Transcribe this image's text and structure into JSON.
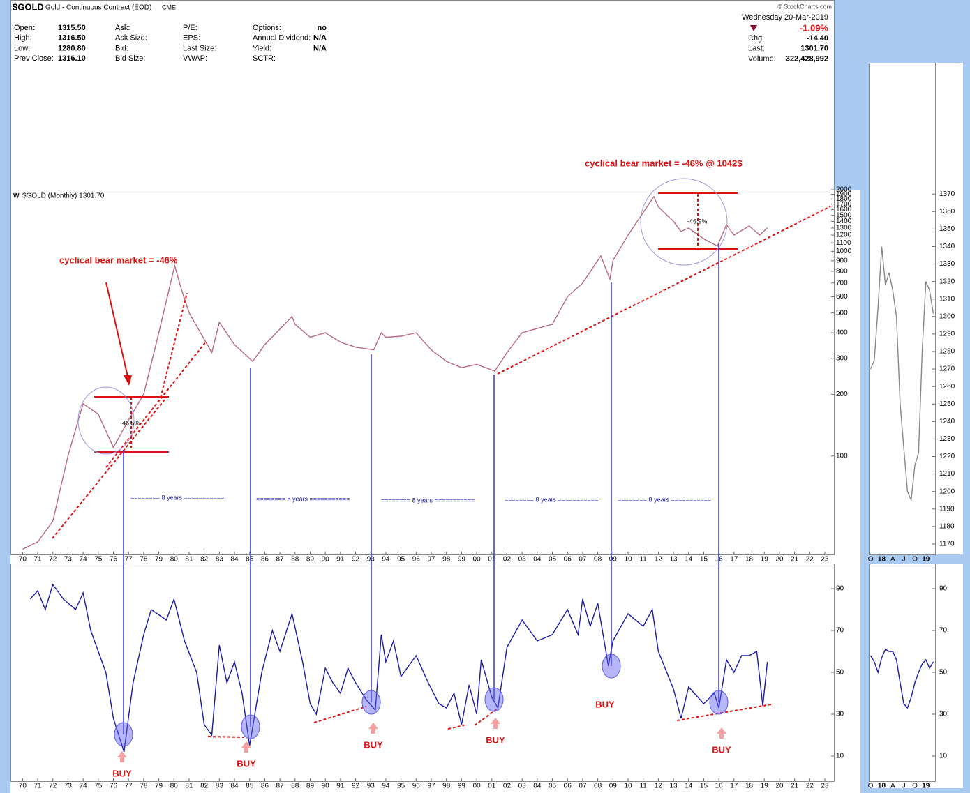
{
  "header": {
    "symbol": "$GOLD",
    "name": "Gold - Continuous Contract (EOD)",
    "exchange": "CME",
    "date": "Wednesday  20-Mar-2019",
    "change_pct": "-1.09%",
    "watermark": "© StockCharts.com",
    "columns": [
      {
        "labels": [
          "Open:",
          "High:",
          "Low:",
          "Prev Close:"
        ],
        "values": [
          "1315.50",
          "1316.50",
          "1280.80",
          "1316.10"
        ]
      },
      {
        "labels": [
          "Ask:",
          "Ask Size:",
          "Bid:",
          "Bid Size:"
        ]
      },
      {
        "labels": [
          "P/E:",
          "EPS:",
          "Last Size:",
          "VWAP:"
        ]
      },
      {
        "labels": [
          "Options:",
          "Annual Dividend:",
          "Yield:",
          "SCTR:"
        ],
        "values": [
          "no",
          "N/A",
          "N/A"
        ]
      },
      {
        "labels": [
          "Chg:",
          "Last:",
          "Volume:"
        ],
        "values": [
          "-14.40",
          "1301.70",
          "322,428,992"
        ]
      }
    ]
  },
  "chart_data": [
    {
      "type": "line",
      "log_scale": true,
      "x": [
        1970,
        1971,
        1972,
        1973,
        1974,
        1975,
        1976,
        1977,
        1978,
        1979,
        1980.05,
        1980.5,
        1981,
        1982.5,
        1983,
        1984,
        1985.2,
        1986,
        1987.8,
        1988,
        1989,
        1990,
        1991,
        1992,
        1993.2,
        1993.7,
        1994,
        1995,
        1996,
        1997,
        1998,
        1999,
        2000,
        2001.2,
        2002,
        2003,
        2004,
        2005,
        2006,
        2007,
        2008.2,
        2008.8,
        2009,
        2010,
        2011.7,
        2012,
        2013,
        2013.5,
        2014,
        2015,
        2015.9,
        2016.5,
        2017,
        2018,
        2018.7,
        2019.2
      ],
      "series": [
        {
          "name": "$GOLD (Monthly) 1301.70",
          "color": "#b76a7c",
          "values": [
            35,
            38,
            48,
            100,
            180,
            160,
            110,
            150,
            200,
            400,
            850,
            650,
            500,
            320,
            450,
            350,
            290,
            350,
            480,
            440,
            380,
            400,
            360,
            340,
            330,
            400,
            380,
            385,
            400,
            330,
            290,
            270,
            280,
            260,
            320,
            400,
            420,
            440,
            600,
            700,
            950,
            730,
            900,
            1200,
            1850,
            1650,
            1400,
            1250,
            1300,
            1150,
            1060,
            1350,
            1200,
            1330,
            1200,
            1301.7
          ]
        }
      ],
      "xlim": [
        1969.2,
        2023.6
      ],
      "ylim": [
        33,
        2000
      ],
      "yticks": [
        100,
        200,
        300,
        400,
        500,
        600,
        700,
        800,
        900,
        1000,
        1100,
        1200,
        1300,
        1400,
        1500,
        1600,
        1700,
        1800,
        1900,
        2000
      ],
      "xticks": [
        {
          "value": 1970,
          "label": "70"
        },
        {
          "value": 1971,
          "label": "71"
        },
        {
          "value": 1972,
          "label": "72"
        },
        {
          "value": 1973,
          "label": "73"
        },
        {
          "value": 1974,
          "label": "74"
        },
        {
          "value": 1975,
          "label": "75"
        },
        {
          "value": 1976,
          "label": "76"
        },
        {
          "value": 1977,
          "label": "77"
        },
        {
          "value": 1978,
          "label": "78"
        },
        {
          "value": 1979,
          "label": "79"
        },
        {
          "value": 1980,
          "label": "80"
        },
        {
          "value": 1981,
          "label": "81"
        },
        {
          "value": 1982,
          "label": "82"
        },
        {
          "value": 1983,
          "label": "83"
        },
        {
          "value": 1984,
          "label": "84"
        },
        {
          "value": 1985,
          "label": "85"
        },
        {
          "value": 1986,
          "label": "86"
        },
        {
          "value": 1987,
          "label": "87"
        },
        {
          "value": 1988,
          "label": "88"
        },
        {
          "value": 1989,
          "label": "89"
        },
        {
          "value": 1990,
          "label": "90"
        },
        {
          "value": 1991,
          "label": "91"
        },
        {
          "value": 1992,
          "label": "92"
        },
        {
          "value": 1993,
          "label": "93"
        },
        {
          "value": 1994,
          "label": "94"
        },
        {
          "value": 1995,
          "label": "95"
        },
        {
          "value": 1996,
          "label": "96"
        },
        {
          "value": 1997,
          "label": "97"
        },
        {
          "value": 1998,
          "label": "98"
        },
        {
          "value": 1999,
          "label": "99"
        },
        {
          "value": 2000,
          "label": "00"
        },
        {
          "value": 2001,
          "label": "01"
        },
        {
          "value": 2002,
          "label": "02"
        },
        {
          "value": 2003,
          "label": "03"
        },
        {
          "value": 2004,
          "label": "04"
        },
        {
          "value": 2005,
          "label": "05"
        },
        {
          "value": 2006,
          "label": "06"
        },
        {
          "value": 2007,
          "label": "07"
        },
        {
          "value": 2008,
          "label": "08"
        },
        {
          "value": 2009,
          "label": "09"
        },
        {
          "value": 2010,
          "label": "10"
        },
        {
          "value": 2011,
          "label": "11"
        },
        {
          "value": 2012,
          "label": "12"
        },
        {
          "value": 2013,
          "label": "13"
        },
        {
          "value": 2014,
          "label": "14"
        },
        {
          "value": 2015,
          "label": "15"
        },
        {
          "value": 2016,
          "label": "16"
        },
        {
          "value": 2017,
          "label": "17"
        },
        {
          "value": 2018,
          "label": "18"
        },
        {
          "value": 2019,
          "label": "19"
        },
        {
          "value": 2020,
          "label": "20"
        },
        {
          "value": 2021,
          "label": "21"
        },
        {
          "value": 2022,
          "label": "22"
        },
        {
          "value": 2023,
          "label": "23"
        }
      ],
      "annotations": [
        "cyclical bear market = -46%",
        "cyclical bear market = -46% @ 1042$",
        "-46.5%",
        "-46.9%",
        "======== 8 years ===========",
        "======== 8 years ===========",
        "======== 8 years ===========",
        "======== 8 years ===========",
        "======== 8 years ==========="
      ]
    },
    {
      "type": "line",
      "color": "#1a1aa6",
      "x": [
        1970.5,
        1971,
        1971.5,
        1972,
        1972.7,
        1973.5,
        1974,
        1974.5,
        1975.5,
        1976,
        1976.7,
        1977.3,
        1978,
        1978.5,
        1979.5,
        1980,
        1980.7,
        1981.5,
        1982,
        1982.5,
        1983,
        1983.5,
        1984,
        1984.5,
        1985,
        1985.8,
        1986.5,
        1987,
        1987.8,
        1988.5,
        1989,
        1989.4,
        1990,
        1990.5,
        1991,
        1991.5,
        1992,
        1992.7,
        1993.3,
        1993.7,
        1994,
        1994.5,
        1995,
        1996,
        1996.8,
        1997.5,
        1998,
        1998.5,
        1999,
        1999.5,
        2000,
        2000.3,
        2001,
        2001.4,
        2002,
        2003,
        2004,
        2005,
        2006,
        2006.7,
        2007,
        2007.5,
        2008,
        2008.7,
        2009,
        2010,
        2011,
        2011.6,
        2012,
        2013,
        2013.5,
        2014,
        2015,
        2015.7,
        2016,
        2016.5,
        2017,
        2017.5,
        2018,
        2018.5,
        2018.9,
        2019.2
      ],
      "values": [
        85,
        89,
        80,
        92,
        85,
        80,
        88,
        70,
        50,
        28,
        12,
        45,
        68,
        80,
        75,
        85,
        65,
        50,
        25,
        20,
        63,
        45,
        55,
        40,
        15,
        50,
        70,
        60,
        78,
        55,
        35,
        30,
        52,
        45,
        40,
        52,
        45,
        37,
        32,
        68,
        55,
        65,
        48,
        58,
        45,
        35,
        33,
        40,
        25,
        44,
        30,
        56,
        38,
        33,
        62,
        75,
        65,
        68,
        80,
        68,
        85,
        72,
        83,
        53,
        65,
        78,
        72,
        80,
        60,
        42,
        28,
        43,
        35,
        40,
        33,
        56,
        50,
        58,
        58,
        60,
        34,
        55
      ],
      "xlim": [
        1969.2,
        2023.6
      ],
      "ylim": [
        -2,
        102
      ],
      "yticks": [
        10,
        30,
        50,
        70,
        90
      ],
      "xticks": [
        {
          "value": 1970,
          "label": "70"
        },
        {
          "value": 1971,
          "label": "71"
        },
        {
          "value": 1972,
          "label": "72"
        },
        {
          "value": 1973,
          "label": "73"
        },
        {
          "value": 1974,
          "label": "74"
        },
        {
          "value": 1975,
          "label": "75"
        },
        {
          "value": 1976,
          "label": "76"
        },
        {
          "value": 1977,
          "label": "77"
        },
        {
          "value": 1978,
          "label": "78"
        },
        {
          "value": 1979,
          "label": "79"
        },
        {
          "value": 1980,
          "label": "80"
        },
        {
          "value": 1981,
          "label": "81"
        },
        {
          "value": 1982,
          "label": "82"
        },
        {
          "value": 1983,
          "label": "83"
        },
        {
          "value": 1984,
          "label": "84"
        },
        {
          "value": 1985,
          "label": "85"
        },
        {
          "value": 1986,
          "label": "86"
        },
        {
          "value": 1987,
          "label": "87"
        },
        {
          "value": 1988,
          "label": "88"
        },
        {
          "value": 1989,
          "label": "89"
        },
        {
          "value": 1990,
          "label": "90"
        },
        {
          "value": 1991,
          "label": "91"
        },
        {
          "value": 1992,
          "label": "92"
        },
        {
          "value": 1993,
          "label": "93"
        },
        {
          "value": 1994,
          "label": "94"
        },
        {
          "value": 1995,
          "label": "95"
        },
        {
          "value": 1996,
          "label": "96"
        },
        {
          "value": 1997,
          "label": "97"
        },
        {
          "value": 1998,
          "label": "98"
        },
        {
          "value": 1999,
          "label": "99"
        },
        {
          "value": 2000,
          "label": "00"
        },
        {
          "value": 2001,
          "label": "01"
        },
        {
          "value": 2002,
          "label": "02"
        },
        {
          "value": 2003,
          "label": "03"
        },
        {
          "value": 2004,
          "label": "04"
        },
        {
          "value": 2005,
          "label": "05"
        },
        {
          "value": 2006,
          "label": "06"
        },
        {
          "value": 2007,
          "label": "07"
        },
        {
          "value": 2008,
          "label": "08"
        },
        {
          "value": 2009,
          "label": "09"
        },
        {
          "value": 2010,
          "label": "10"
        },
        {
          "value": 2011,
          "label": "11"
        },
        {
          "value": 2012,
          "label": "12"
        },
        {
          "value": 2013,
          "label": "13"
        },
        {
          "value": 2014,
          "label": "14"
        },
        {
          "value": 2015,
          "label": "15"
        },
        {
          "value": 2016,
          "label": "16"
        },
        {
          "value": 2017,
          "label": "17"
        },
        {
          "value": 2018,
          "label": "18"
        },
        {
          "value": 2019,
          "label": "19"
        },
        {
          "value": 2020,
          "label": "20"
        },
        {
          "value": 2021,
          "label": "21"
        },
        {
          "value": 2022,
          "label": "22"
        },
        {
          "value": 2023,
          "label": "23"
        }
      ],
      "annotations": [
        "BUY",
        "BUY",
        "BUY",
        "BUY",
        "BUY",
        "BUY"
      ]
    },
    {
      "type": "line",
      "color": "#888888",
      "categories": [
        "O",
        null,
        null,
        "18",
        null,
        null,
        "A",
        null,
        null,
        "J",
        null,
        null,
        "O",
        null,
        null,
        "19",
        null,
        null
      ],
      "values": [
        1270,
        1275,
        1305,
        1340,
        1318,
        1325,
        1315,
        1300,
        1250,
        1225,
        1200,
        1195,
        1215,
        1222,
        1280,
        1320,
        1315,
        1301.7
      ],
      "ylim": [
        1164,
        1445
      ],
      "yticks": [
        1170,
        1180,
        1190,
        1200,
        1210,
        1220,
        1230,
        1240,
        1250,
        1260,
        1270,
        1280,
        1290,
        1300,
        1310,
        1320,
        1330,
        1340,
        1350,
        1360,
        1370
      ]
    },
    {
      "type": "line",
      "color": "#1a1aa6",
      "categories": [
        "O",
        null,
        null,
        "18",
        null,
        null,
        "A",
        null,
        null,
        "J",
        null,
        null,
        "O",
        null,
        null,
        "19",
        null,
        null
      ],
      "values": [
        58,
        55,
        50,
        57,
        61,
        60,
        60,
        56,
        45,
        35,
        33,
        38,
        45,
        50,
        54,
        56,
        52,
        55
      ],
      "ylim": [
        -2,
        102
      ],
      "yticks": [
        10,
        30,
        50,
        70,
        90
      ]
    }
  ]
}
